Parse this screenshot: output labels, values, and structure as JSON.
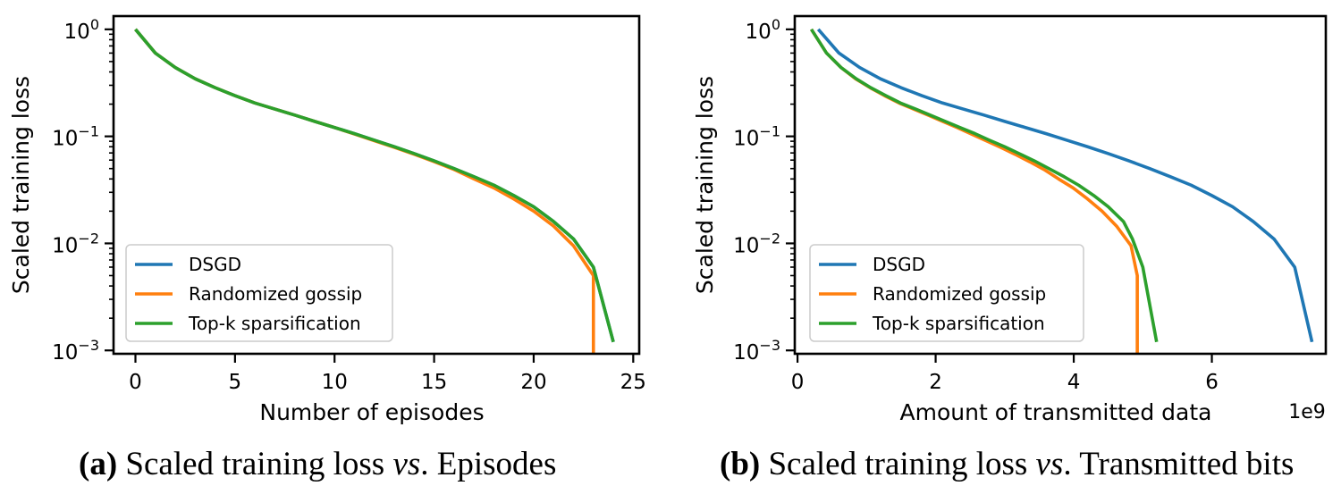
{
  "chart_data": [
    {
      "type": "line",
      "yscale": "log",
      "xlabel": "Number of episodes",
      "ylabel": "Scaled training loss",
      "xlim": [
        -1.1,
        25.3
      ],
      "ylim": [
        0.00093,
        1.33
      ],
      "xticks": [
        0,
        5,
        10,
        15,
        20,
        25
      ],
      "xtick_labels": [
        "0",
        "5",
        "10",
        "15",
        "20",
        "25"
      ],
      "xtick_multiplier": "",
      "yticks": [
        {
          "base": "10",
          "exp": "0",
          "value": 1
        },
        {
          "base": "10",
          "exp": "−1",
          "value": 0.1
        },
        {
          "base": "10",
          "exp": "−2",
          "value": 0.01
        },
        {
          "base": "10",
          "exp": "−3",
          "value": 0.001
        }
      ],
      "legend": {
        "position": "lower-left",
        "entries": [
          "DSGD",
          "Randomized gossip",
          "Top-k sparsification"
        ]
      },
      "series": [
        {
          "name": "DSGD",
          "color": "#1f77b4",
          "x": [
            0,
            1,
            2,
            3,
            4,
            5,
            6,
            7,
            8,
            9,
            10,
            11,
            12,
            13,
            14,
            15,
            16,
            17,
            18,
            19,
            20,
            21,
            22,
            23,
            24
          ],
          "y": [
            1.0,
            0.6,
            0.44,
            0.345,
            0.285,
            0.24,
            0.205,
            0.18,
            0.158,
            0.138,
            0.121,
            0.106,
            0.092,
            0.08,
            0.069,
            0.059,
            0.05,
            0.042,
            0.035,
            0.028,
            0.022,
            0.016,
            0.011,
            0.006,
            0.0012
          ]
        },
        {
          "name": "Randomized gossip",
          "color": "#ff7f0e",
          "x": [
            0,
            1,
            2,
            3,
            4,
            5,
            6,
            7,
            8,
            9,
            10,
            11,
            12,
            13,
            14,
            15,
            16,
            17,
            18,
            19,
            20,
            21,
            22,
            23,
            23
          ],
          "y": [
            1.0,
            0.6,
            0.44,
            0.345,
            0.285,
            0.24,
            0.205,
            0.18,
            0.158,
            0.138,
            0.121,
            0.105,
            0.091,
            0.079,
            0.068,
            0.058,
            0.049,
            0.04,
            0.033,
            0.026,
            0.02,
            0.0145,
            0.0095,
            0.005,
            0.0009
          ]
        },
        {
          "name": "Top-k sparsification",
          "color": "#2ca02c",
          "x": [
            0,
            1,
            2,
            3,
            4,
            5,
            6,
            7,
            8,
            9,
            10,
            11,
            12,
            13,
            14,
            15,
            16,
            17,
            18,
            19,
            20,
            21,
            22,
            23,
            24
          ],
          "y": [
            1.0,
            0.6,
            0.44,
            0.345,
            0.285,
            0.24,
            0.205,
            0.18,
            0.158,
            0.138,
            0.121,
            0.106,
            0.092,
            0.08,
            0.069,
            0.059,
            0.05,
            0.042,
            0.035,
            0.028,
            0.022,
            0.016,
            0.011,
            0.006,
            0.0012
          ]
        }
      ],
      "caption": {
        "label": "(a)",
        "text_before": " Scaled training loss ",
        "italic": "vs",
        "text_after": ". Episodes"
      }
    },
    {
      "type": "line",
      "yscale": "log",
      "xlabel": "Amount of transmitted data",
      "ylabel": "Scaled training loss",
      "xlim": [
        -0.04,
        7.65
      ],
      "ylim": [
        0.00093,
        1.33
      ],
      "xticks": [
        0,
        2,
        4,
        6
      ],
      "xtick_labels": [
        "0",
        "2",
        "4",
        "6"
      ],
      "xtick_multiplier": "1e9",
      "yticks": [
        {
          "base": "10",
          "exp": "0",
          "value": 1
        },
        {
          "base": "10",
          "exp": "−1",
          "value": 0.1
        },
        {
          "base": "10",
          "exp": "−2",
          "value": 0.01
        },
        {
          "base": "10",
          "exp": "−3",
          "value": 0.001
        }
      ],
      "legend": {
        "position": "lower-left",
        "entries": [
          "DSGD",
          "Randomized gossip",
          "Top-k sparsification"
        ]
      },
      "series": [
        {
          "name": "DSGD",
          "color": "#1f77b4",
          "x": [
            0.3,
            0.6,
            0.9,
            1.2,
            1.5,
            1.8,
            2.1,
            2.4,
            2.7,
            3.0,
            3.3,
            3.6,
            3.9,
            4.2,
            4.5,
            4.8,
            5.1,
            5.4,
            5.7,
            6.0,
            6.3,
            6.6,
            6.9,
            7.2,
            7.45
          ],
          "y": [
            1.0,
            0.6,
            0.44,
            0.345,
            0.285,
            0.24,
            0.205,
            0.18,
            0.158,
            0.138,
            0.121,
            0.106,
            0.092,
            0.08,
            0.069,
            0.059,
            0.05,
            0.042,
            0.035,
            0.028,
            0.022,
            0.016,
            0.011,
            0.006,
            0.0012
          ]
        },
        {
          "name": "Randomized gossip",
          "color": "#ff7f0e",
          "x": [
            0.2,
            0.42,
            0.63,
            0.84,
            1.05,
            1.26,
            1.47,
            1.68,
            1.89,
            2.1,
            2.31,
            2.52,
            2.73,
            2.94,
            3.15,
            3.36,
            3.57,
            3.78,
            3.99,
            4.2,
            4.41,
            4.62,
            4.83,
            4.92,
            4.92
          ],
          "y": [
            1.0,
            0.6,
            0.44,
            0.345,
            0.285,
            0.24,
            0.205,
            0.18,
            0.158,
            0.138,
            0.121,
            0.105,
            0.091,
            0.079,
            0.068,
            0.058,
            0.049,
            0.04,
            0.033,
            0.026,
            0.02,
            0.0145,
            0.0095,
            0.005,
            0.0009
          ]
        },
        {
          "name": "Top-k sparsification",
          "color": "#2ca02c",
          "x": [
            0.2,
            0.42,
            0.63,
            0.85,
            1.06,
            1.28,
            1.49,
            1.71,
            1.92,
            2.14,
            2.35,
            2.57,
            2.78,
            3.0,
            3.21,
            3.43,
            3.64,
            3.86,
            4.07,
            4.29,
            4.5,
            4.72,
            4.85,
            5.0,
            5.2
          ],
          "y": [
            1.0,
            0.6,
            0.44,
            0.345,
            0.285,
            0.24,
            0.205,
            0.18,
            0.158,
            0.138,
            0.121,
            0.106,
            0.092,
            0.08,
            0.069,
            0.059,
            0.05,
            0.042,
            0.035,
            0.028,
            0.022,
            0.016,
            0.011,
            0.006,
            0.0012
          ]
        }
      ],
      "caption": {
        "label": "(b)",
        "text_before": " Scaled training loss ",
        "italic": "vs",
        "text_after": ". Transmitted bits"
      }
    }
  ]
}
